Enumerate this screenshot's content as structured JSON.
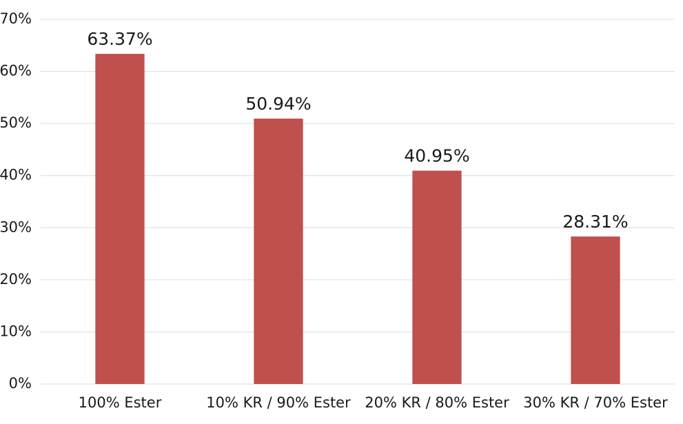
{
  "chart_data": {
    "type": "bar",
    "categories": [
      "100% Ester",
      "10% KR / 90% Ester",
      "20% KR / 80% Ester",
      "30% KR / 70% Ester"
    ],
    "values": [
      63.37,
      50.94,
      40.95,
      28.31
    ],
    "value_labels": [
      "63.37%",
      "50.94%",
      "40.95%",
      "28.31%"
    ],
    "color": "#c0504d",
    "ylim": [
      0,
      70
    ],
    "yticks": [
      {
        "value": 0,
        "label": "0%"
      },
      {
        "value": 10,
        "label": "10%"
      },
      {
        "value": 20,
        "label": "20%"
      },
      {
        "value": 30,
        "label": "30%"
      },
      {
        "value": 40,
        "label": "40%"
      },
      {
        "value": 50,
        "label": "50%"
      },
      {
        "value": 60,
        "label": "60%"
      },
      {
        "value": 70,
        "label": "70%"
      }
    ],
    "grid": true
  }
}
